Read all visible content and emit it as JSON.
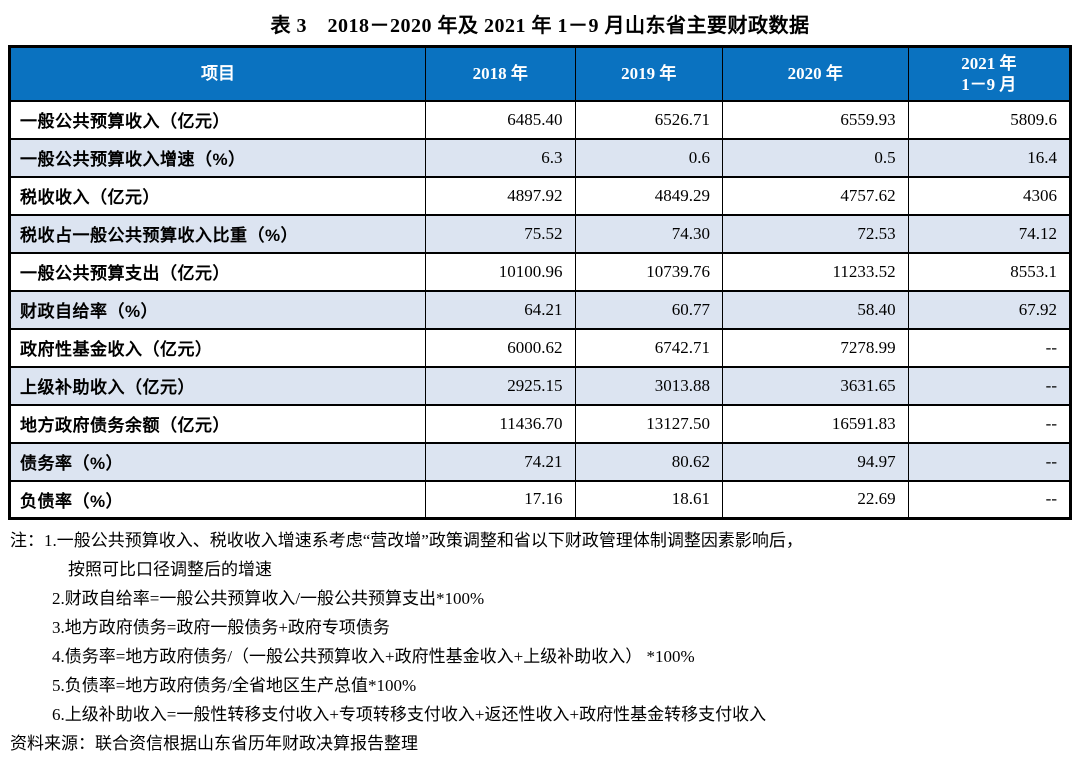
{
  "page": {
    "title": "表 3　2018－2020 年及 2021 年 1－9 月山东省主要财政数据"
  },
  "colors": {
    "header_bg": "#0a72c0",
    "header_fg": "#ffffff",
    "row_alt_bg": "#dce4f1",
    "border_color": "#000000"
  },
  "table": {
    "header": {
      "item": "项目",
      "y2018": "2018 年",
      "y2019": "2019 年",
      "y2020": "2020 年",
      "y2021_line1": "2021 年",
      "y2021_line2": "1－9 月"
    },
    "rows": [
      {
        "label": "一般公共预算收入（亿元）",
        "v2018": "6485.40",
        "v2019": "6526.71",
        "v2020": "6559.93",
        "v2021": "5809.6"
      },
      {
        "label": "一般公共预算收入增速（%）",
        "v2018": "6.3",
        "v2019": "0.6",
        "v2020": "0.5",
        "v2021": "16.4"
      },
      {
        "label": "税收收入（亿元）",
        "v2018": "4897.92",
        "v2019": "4849.29",
        "v2020": "4757.62",
        "v2021": "4306"
      },
      {
        "label": "税收占一般公共预算收入比重（%）",
        "v2018": "75.52",
        "v2019": "74.30",
        "v2020": "72.53",
        "v2021": "74.12"
      },
      {
        "label": "一般公共预算支出（亿元）",
        "v2018": "10100.96",
        "v2019": "10739.76",
        "v2020": "11233.52",
        "v2021": "8553.1"
      },
      {
        "label": "财政自给率（%）",
        "v2018": "64.21",
        "v2019": "60.77",
        "v2020": "58.40",
        "v2021": "67.92"
      },
      {
        "label": "政府性基金收入（亿元）",
        "v2018": "6000.62",
        "v2019": "6742.71",
        "v2020": "7278.99",
        "v2021": "--"
      },
      {
        "label": "上级补助收入（亿元）",
        "v2018": "2925.15",
        "v2019": "3013.88",
        "v2020": "3631.65",
        "v2021": "--"
      },
      {
        "label": "地方政府债务余额（亿元）",
        "v2018": "11436.70",
        "v2019": "13127.50",
        "v2020": "16591.83",
        "v2021": "--"
      },
      {
        "label": "债务率（%）",
        "v2018": "74.21",
        "v2019": "80.62",
        "v2020": "94.97",
        "v2021": "--"
      },
      {
        "label": "负债率（%）",
        "v2018": "17.16",
        "v2019": "18.61",
        "v2020": "22.69",
        "v2021": "--"
      }
    ]
  },
  "notes": {
    "prefix": "注：",
    "line1": "1.一般公共预算收入、税收收入增速系考虑“营改增”政策调整和省以下财政管理体制调整因素影响后，",
    "line1_cont": "按照可比口径调整后的增速",
    "line2": "2.财政自给率=一般公共预算收入/一般公共预算支出*100%",
    "line3": "3.地方政府债务=政府一般债务+政府专项债务",
    "line4": "4.债务率=地方政府债务/（一般公共预算收入+政府性基金收入+上级补助收入） *100%",
    "line5": "5.负债率=地方政府债务/全省地区生产总值*100%",
    "line6": "6.上级补助收入=一般性转移支付收入+专项转移支付收入+返还性收入+政府性基金转移支付收入",
    "source": "资料来源：联合资信根据山东省历年财政决算报告整理"
  }
}
